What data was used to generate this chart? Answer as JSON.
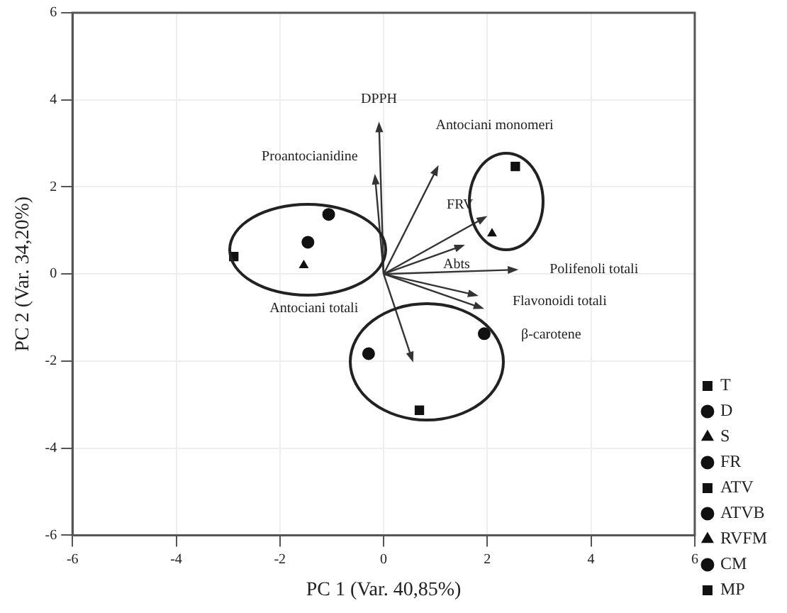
{
  "chart_data": {
    "type": "scatter",
    "xlabel": "PC 1 (Var. 40,85%)",
    "ylabel": "PC 2 (Var. 34,20%)",
    "xlim": [
      -6,
      6
    ],
    "xticks": [
      -6,
      -4,
      -2,
      0,
      2,
      4,
      6
    ],
    "ylim": [
      -6,
      6
    ],
    "yticks": [
      -6,
      -4,
      -2,
      0,
      2,
      4,
      6
    ],
    "grid": true,
    "legend": "right",
    "series": [
      {
        "name": "T",
        "color": "#111111",
        "marker": "square",
        "x": [
          2.54
        ],
        "values": [
          2.47
        ]
      },
      {
        "name": "D",
        "color": "#111111",
        "marker": "circle",
        "x": [
          -0.29
        ],
        "values": [
          -1.83
        ]
      },
      {
        "name": "S",
        "color": "#111111",
        "marker": "triangle",
        "x": [
          2.09
        ],
        "values": [
          0.93
        ]
      },
      {
        "name": "FR",
        "color": "#111111",
        "marker": "circle",
        "x": [
          -1.06
        ],
        "values": [
          1.37
        ]
      },
      {
        "name": "ATV",
        "color": "#111111",
        "marker": "square",
        "x": [
          0.69
        ],
        "values": [
          -3.13
        ]
      },
      {
        "name": "ATVB",
        "color": "#111111",
        "marker": "circle",
        "x": [
          1.94
        ],
        "values": [
          -1.37
        ]
      },
      {
        "name": "RVFM",
        "color": "#111111",
        "marker": "triangle",
        "x": [
          -1.54
        ],
        "values": [
          0.2
        ]
      },
      {
        "name": "CM",
        "color": "#111111",
        "marker": "circle",
        "x": [
          -1.46
        ],
        "values": [
          0.73
        ]
      },
      {
        "name": "MP",
        "color": "#111111",
        "marker": "square",
        "x": [
          -2.89
        ],
        "values": [
          0.4
        ]
      }
    ],
    "annotations": [
      "DPPH",
      "Proantocianidine",
      "Antociani monomeri",
      "FRV",
      "Abts",
      "Polifenoli totali",
      "Flavonoidi totali",
      "β-carotene",
      "Antociani totali"
    ]
  }
}
